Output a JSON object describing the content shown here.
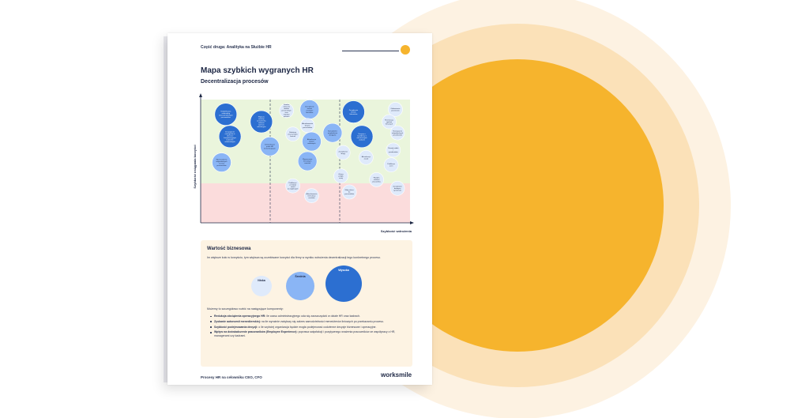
{
  "header": {
    "section": "Część druga: Analityka na Służbie HR"
  },
  "title": "Mapa szybkich wygranych HR",
  "subtitle": "Decentralizacja procesów",
  "chart_data": {
    "type": "scatter",
    "xlabel": "Szybkość wdrożenia",
    "ylabel": "Szybkość osiągania korzyści",
    "grid": false,
    "legend": "none",
    "colors": {
      "top": "#eaf5dc",
      "bottom": "#fbdcdc",
      "wysoka": "#2c6fd1",
      "srednia": "#8ab5f5",
      "niska": "#dfeafb"
    },
    "points": [
      {
        "x": 12,
        "y": 88,
        "size": "wysoka",
        "label": "Kompleksowa onboarding nowozatrudnionych pracowników"
      },
      {
        "x": 14,
        "y": 70,
        "size": "wysoka",
        "label": "Decyzyjność managerów w obszarze kompetencyjnym budżetów szkoleniowych"
      },
      {
        "x": 10,
        "y": 49,
        "size": "srednia",
        "label": "Wprowadzenie indywidualnych ścieżek pracowników"
      },
      {
        "x": 29,
        "y": 82,
        "size": "wysoka",
        "label": "Większa selekcja samodzielna zdarzeń wymiaru rekrutacyjne"
      },
      {
        "x": 33,
        "y": 62,
        "size": "srednia",
        "label": "Zatwierdzanie próśb HR komunikujących"
      },
      {
        "x": 41,
        "y": 91,
        "size": "niska",
        "label": "Dzielnie zakup do działań personalnych oraz regulacji procesu"
      },
      {
        "x": 52,
        "y": 92,
        "size": "srednia",
        "label": "Zarządzanie swoimi zasobami benefitów"
      },
      {
        "x": 51,
        "y": 79,
        "size": "niska",
        "label": "Aktualizowanie danych pracowników"
      },
      {
        "x": 44,
        "y": 72,
        "size": "niska",
        "label": "Szkolenie pracowników kontroli"
      },
      {
        "x": 53,
        "y": 66,
        "size": "srednia",
        "label": "Aktualizacja danych osobowych"
      },
      {
        "x": 51,
        "y": 50,
        "size": "srednia",
        "label": "Wyznaczanie formalnych samotek"
      },
      {
        "x": 44,
        "y": 30,
        "size": "niska",
        "label": "Publikacja i przegląd zasad szczegółowych"
      },
      {
        "x": 53,
        "y": 22,
        "size": "niska",
        "label": "Aktualizowanie formularzy zasobów"
      },
      {
        "x": 63,
        "y": 73,
        "size": "srednia",
        "label": "Samodzielne przydzielenie dostępów"
      },
      {
        "x": 73,
        "y": 90,
        "size": "wysoka",
        "label": "Zarządzanie limitem kilometrów"
      },
      {
        "x": 77,
        "y": 70,
        "size": "wysoka",
        "label": "Decyzje o współpracy z zakończonymi osobami"
      },
      {
        "x": 68,
        "y": 57,
        "size": "niska",
        "label": "Zarządzanie drogą"
      },
      {
        "x": 67,
        "y": 38,
        "size": "niska",
        "label": "Zakres polityk mniej"
      },
      {
        "x": 71,
        "y": 25,
        "size": "niska",
        "label": "Mały zakres do pracowników"
      },
      {
        "x": 79,
        "y": 53,
        "size": "niska",
        "label": "Aktualizacja zasad"
      },
      {
        "x": 84,
        "y": 35,
        "size": "niska",
        "label": "Wysyłka zestawu pracownika"
      },
      {
        "x": 93,
        "y": 92,
        "size": "niska",
        "label": "Odświeżenie przestrzeni"
      },
      {
        "x": 90,
        "y": 82,
        "size": "niska",
        "label": "Rezerwacja spotkań firmowych"
      },
      {
        "x": 94,
        "y": 73,
        "size": "niska",
        "label": "Rozwiązanie indywidualnych przedmiotów"
      },
      {
        "x": 92,
        "y": 59,
        "size": "niska",
        "label": "Rozwój zadań i przedmiotów"
      },
      {
        "x": 91,
        "y": 47,
        "size": "niska",
        "label": "Publikacja ocen"
      },
      {
        "x": 94,
        "y": 28,
        "size": "niska",
        "label": "Zarządzanie drobnymi systemami"
      }
    ]
  },
  "panel": {
    "title": "Wartość biznesowa",
    "desc": "Im większe koło w korzyściu, tym większa są oczekiwane korzyści dla firmy w wyniku wdrożenia decentralizacji tego konkretnego procesu.",
    "legend": [
      {
        "label": "Niska",
        "color": "#dfeafb"
      },
      {
        "label": "Średnia",
        "color": "#8ab5f5"
      },
      {
        "label": "Wysoka",
        "color": "#2c6fd1"
      }
    ],
    "intro": "Możemy to szczegółowo rozbić na następujące komponenty:",
    "items": [
      {
        "term": "Redukcja obciążenia operacyjnego HR:",
        "text": " ile czasu administracyjnego uda się zaoszczędzić w dziale HR oraz kadrach."
      },
      {
        "term": "Zyskanie autonomii menedżerskiej:",
        "text": " na ile wyraźnie zwiększy się zakres samodzielności menedżerów liniowych po przekazaniu procesu."
      },
      {
        "term": "Szybkość podejmowania decyzji:",
        "text": " o ile szybciej organizacja będzie mogła podejmować codzienne decyzje biznesowe i operacyjne."
      },
      {
        "term": "Wpływ na doświadczenie pracowników (Employee Experience):",
        "text": " poprawa satysfakcji i pozytywnego wrażenia pracowników ze współpracy z HR, managerami czy kadrami."
      }
    ]
  },
  "footer": {
    "text": "Procesy HR na celowniku CEO, CFO",
    "brand": "worksmile"
  }
}
